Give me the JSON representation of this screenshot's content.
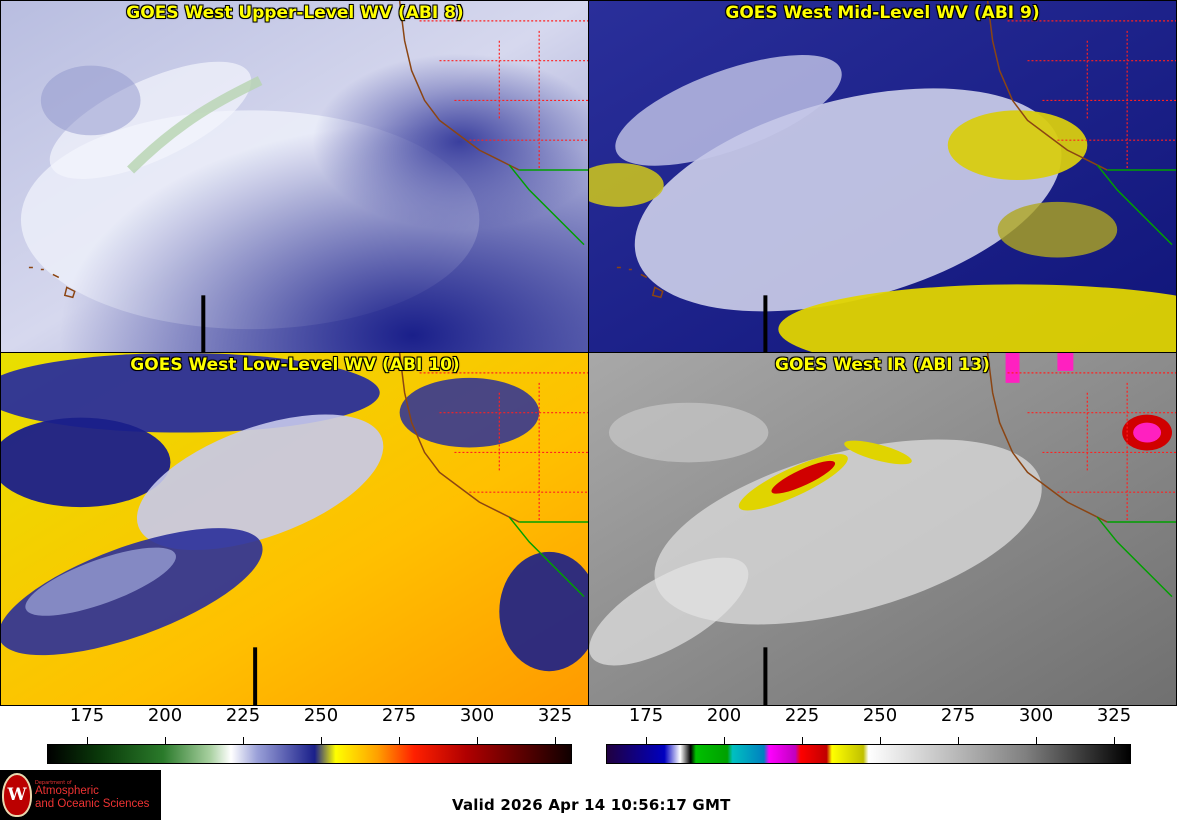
{
  "panels": [
    {
      "title": "GOES West Upper-Level WV (ABI 8)",
      "style": "upper"
    },
    {
      "title": "GOES West Mid-Level WV (ABI 9)",
      "style": "mid"
    },
    {
      "title": "GOES West Low-Level WV (ABI 10)",
      "style": "low"
    },
    {
      "title": "GOES West IR (ABI 13)",
      "style": "ir"
    }
  ],
  "colorbars": {
    "wv": {
      "ticks": [
        "175",
        "200",
        "225",
        "250",
        "275",
        "300",
        "325"
      ]
    },
    "ir": {
      "ticks": [
        "175",
        "200",
        "225",
        "250",
        "275",
        "300",
        "325"
      ]
    }
  },
  "logo": {
    "department": "Department of",
    "line1": "Atmospheric",
    "line2": "and Oceanic Sciences",
    "seal_letter": "W"
  },
  "valid_time": "Valid 2026 Apr 14 10:56:17 GMT",
  "colors": {
    "title_text": "#ffff00",
    "state_borders": "#ff2020",
    "coastline": "#8b4513",
    "mexico_border": "#00a000"
  }
}
